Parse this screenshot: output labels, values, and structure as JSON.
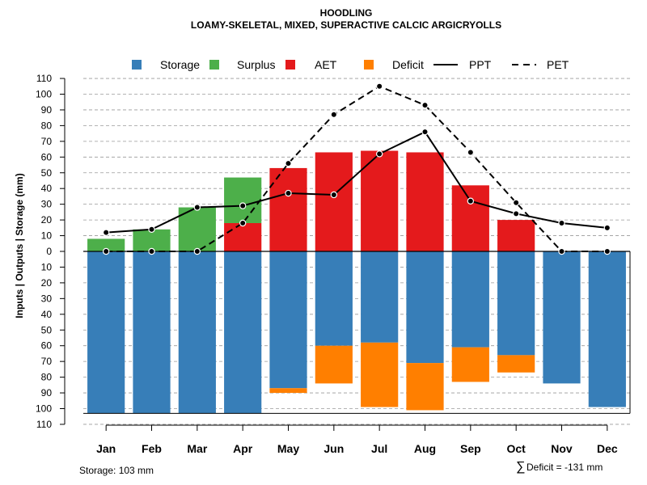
{
  "chart_data": {
    "type": "bar",
    "title": "HOODLING",
    "subtitle": "LOAMY-SKELETAL, MIXED, SUPERACTIVE CALCIC ARGICRYOLLS",
    "ylabel": "Inputs | Outputs | Storage     (mm)",
    "ylim": [
      -110,
      110
    ],
    "yticks": [
      110,
      100,
      90,
      80,
      70,
      60,
      50,
      40,
      30,
      20,
      10,
      0,
      -10,
      -20,
      -30,
      -40,
      -50,
      -60,
      -70,
      -80,
      -90,
      -100,
      -110
    ],
    "ytick_labels": [
      "110",
      "100",
      "90",
      "80",
      "70",
      "60",
      "50",
      "40",
      "30",
      "20",
      "10",
      "0",
      "10",
      "20",
      "30",
      "40",
      "50",
      "60",
      "70",
      "80",
      "90",
      "100",
      "110"
    ],
    "categories": [
      "Jan",
      "Feb",
      "Mar",
      "Apr",
      "May",
      "Jun",
      "Jul",
      "Aug",
      "Sep",
      "Oct",
      "Nov",
      "Dec"
    ],
    "legend": {
      "position": "top",
      "entries": [
        {
          "label": "Storage",
          "color": "#377EB8",
          "kind": "box"
        },
        {
          "label": "Surplus",
          "color": "#4DAF4A",
          "kind": "box"
        },
        {
          "label": "AET",
          "color": "#E41A1C",
          "kind": "box"
        },
        {
          "label": "Deficit",
          "color": "#FF7F00",
          "kind": "box"
        },
        {
          "label": "PPT",
          "color": "#000000",
          "kind": "solid"
        },
        {
          "label": "PET",
          "color": "#000000",
          "kind": "dashed"
        }
      ]
    },
    "series": [
      {
        "name": "Surplus",
        "color": "#4DAF4A",
        "values": [
          8,
          14,
          28,
          29,
          0,
          0,
          0,
          0,
          0,
          0,
          0,
          0
        ]
      },
      {
        "name": "AET",
        "color": "#E41A1C",
        "values": [
          0,
          0,
          0,
          18,
          53,
          63,
          64,
          63,
          42,
          20,
          0,
          0
        ]
      },
      {
        "name": "Storage",
        "color": "#377EB8",
        "values": [
          103,
          103,
          103,
          103,
          87,
          60,
          58,
          71,
          61,
          66,
          84,
          99
        ]
      },
      {
        "name": "Deficit",
        "color": "#FF7F00",
        "values": [
          0,
          0,
          0,
          0,
          3,
          24,
          41,
          30,
          22,
          11,
          0,
          0
        ]
      },
      {
        "name": "PPT",
        "color": "#000000",
        "values": [
          12,
          14,
          28,
          29,
          37,
          36,
          62,
          76,
          32,
          24,
          18,
          15
        ]
      },
      {
        "name": "PET",
        "color": "#000000",
        "values": [
          0,
          0,
          0,
          18,
          56,
          87,
          105,
          93,
          63,
          31,
          0,
          0
        ]
      }
    ]
  },
  "notes": {
    "storage": "Storage: 103 mm",
    "deficit_symbol": "∑",
    "deficit": "Deficit = -131 mm"
  }
}
